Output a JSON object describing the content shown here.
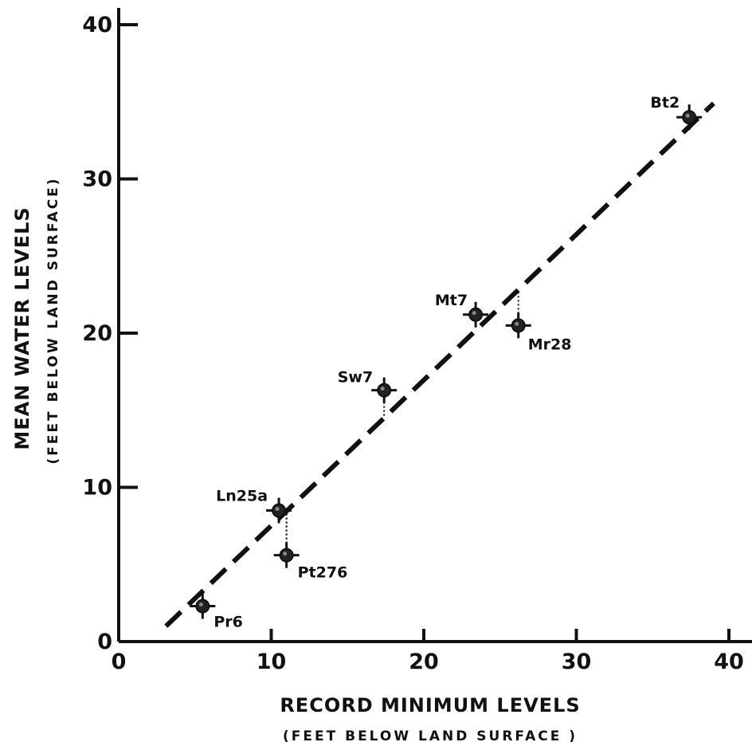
{
  "chart_data": {
    "type": "scatter",
    "title": "",
    "xlabel": "RECORD MINIMUM LEVELS",
    "xlabel_sub": "(FEET BELOW LAND SURFACE )",
    "ylabel": "MEAN WATER LEVELS",
    "ylabel_sub": "(FEET BELOW LAND SURFACE)",
    "xlim": [
      0,
      40
    ],
    "ylim": [
      0,
      40
    ],
    "x_ticks": [
      0,
      10,
      20,
      30,
      40
    ],
    "y_ticks": [
      0,
      10,
      20,
      30,
      40
    ],
    "grid": false,
    "points": [
      {
        "label": "Pr6",
        "x": 5.5,
        "y": 2.3
      },
      {
        "label": "Ln25a",
        "x": 10.5,
        "y": 8.5
      },
      {
        "label": "Pt276",
        "x": 11.0,
        "y": 5.6
      },
      {
        "label": "Sw7",
        "x": 17.4,
        "y": 16.3
      },
      {
        "label": "Mt7",
        "x": 23.4,
        "y": 21.2
      },
      {
        "label": "Mr28",
        "x": 26.2,
        "y": 20.5
      },
      {
        "label": "Bt2",
        "x": 37.4,
        "y": 34.0
      }
    ],
    "trend_line": {
      "style": "dashed",
      "start": [
        3.1,
        1.0
      ],
      "end": [
        39.0,
        34.9
      ]
    }
  }
}
